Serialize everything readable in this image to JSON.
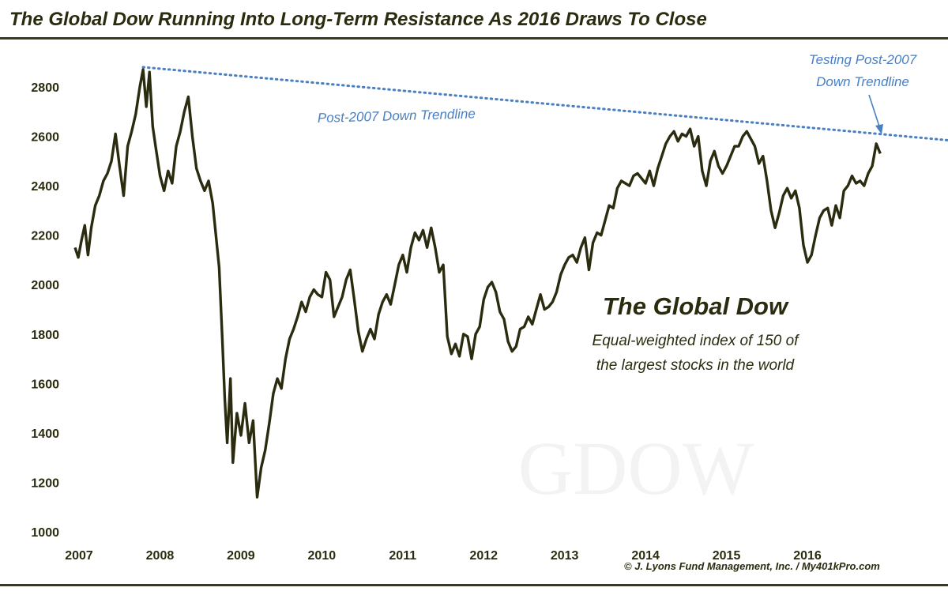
{
  "header": {
    "title": "The Global Dow Running Into Long-Term Resistance As 2016 Draws To Close"
  },
  "footer": {
    "credit": "© J. Lyons Fund Management, Inc. / My401kPro.com"
  },
  "colors": {
    "line": "#2b2b0f",
    "trendline": "#4a7fc1",
    "annotation": "#4a7fc1",
    "text": "#2b2b0f",
    "watermark": "#f3f3f3"
  },
  "chart_data": {
    "type": "line",
    "title": "The Global Dow",
    "subtitle_lines": [
      "Equal-weighted index of 150 of",
      "the largest stocks in the world"
    ],
    "watermark": "GDOW",
    "xlabel": "",
    "ylabel": "",
    "xlim": [
      2007.0,
      2018.15
    ],
    "ylim": [
      1000,
      2900
    ],
    "x_ticks": [
      2007,
      2008,
      2009,
      2010,
      2011,
      2012,
      2013,
      2014,
      2015,
      2016
    ],
    "y_ticks": [
      1000,
      1200,
      1400,
      1600,
      1800,
      2000,
      2200,
      2400,
      2600,
      2800
    ],
    "grid": false,
    "series": [
      {
        "values_xy": [
          [
            2007.0,
            2150
          ],
          [
            2007.04,
            2110
          ],
          [
            2007.08,
            2180
          ],
          [
            2007.12,
            2240
          ],
          [
            2007.16,
            2120
          ],
          [
            2007.2,
            2230
          ],
          [
            2007.25,
            2320
          ],
          [
            2007.3,
            2360
          ],
          [
            2007.35,
            2420
          ],
          [
            2007.4,
            2450
          ],
          [
            2007.45,
            2500
          ],
          [
            2007.5,
            2610
          ],
          [
            2007.55,
            2480
          ],
          [
            2007.6,
            2360
          ],
          [
            2007.65,
            2560
          ],
          [
            2007.7,
            2620
          ],
          [
            2007.75,
            2690
          ],
          [
            2007.8,
            2800
          ],
          [
            2007.84,
            2870
          ],
          [
            2007.88,
            2720
          ],
          [
            2007.92,
            2860
          ],
          [
            2007.96,
            2640
          ],
          [
            2008.0,
            2550
          ],
          [
            2008.05,
            2440
          ],
          [
            2008.1,
            2380
          ],
          [
            2008.15,
            2460
          ],
          [
            2008.2,
            2410
          ],
          [
            2008.25,
            2560
          ],
          [
            2008.3,
            2620
          ],
          [
            2008.35,
            2700
          ],
          [
            2008.4,
            2760
          ],
          [
            2008.45,
            2600
          ],
          [
            2008.5,
            2470
          ],
          [
            2008.55,
            2420
          ],
          [
            2008.6,
            2380
          ],
          [
            2008.65,
            2420
          ],
          [
            2008.7,
            2330
          ],
          [
            2008.74,
            2200
          ],
          [
            2008.78,
            2070
          ],
          [
            2008.82,
            1780
          ],
          [
            2008.85,
            1540
          ],
          [
            2008.88,
            1360
          ],
          [
            2008.92,
            1620
          ],
          [
            2008.95,
            1280
          ],
          [
            2009.0,
            1480
          ],
          [
            2009.05,
            1390
          ],
          [
            2009.1,
            1520
          ],
          [
            2009.15,
            1360
          ],
          [
            2009.2,
            1450
          ],
          [
            2009.25,
            1140
          ],
          [
            2009.3,
            1260
          ],
          [
            2009.35,
            1330
          ],
          [
            2009.4,
            1440
          ],
          [
            2009.45,
            1560
          ],
          [
            2009.5,
            1620
          ],
          [
            2009.55,
            1580
          ],
          [
            2009.6,
            1700
          ],
          [
            2009.65,
            1780
          ],
          [
            2009.7,
            1820
          ],
          [
            2009.75,
            1870
          ],
          [
            2009.8,
            1930
          ],
          [
            2009.85,
            1890
          ],
          [
            2009.9,
            1950
          ],
          [
            2009.95,
            1980
          ],
          [
            2010.0,
            1960
          ],
          [
            2010.05,
            1950
          ],
          [
            2010.1,
            2050
          ],
          [
            2010.15,
            2020
          ],
          [
            2010.2,
            1870
          ],
          [
            2010.25,
            1910
          ],
          [
            2010.3,
            1950
          ],
          [
            2010.35,
            2020
          ],
          [
            2010.4,
            2060
          ],
          [
            2010.45,
            1940
          ],
          [
            2010.5,
            1810
          ],
          [
            2010.55,
            1730
          ],
          [
            2010.6,
            1780
          ],
          [
            2010.65,
            1820
          ],
          [
            2010.7,
            1780
          ],
          [
            2010.75,
            1880
          ],
          [
            2010.8,
            1930
          ],
          [
            2010.85,
            1960
          ],
          [
            2010.9,
            1920
          ],
          [
            2010.95,
            2000
          ],
          [
            2011.0,
            2080
          ],
          [
            2011.05,
            2120
          ],
          [
            2011.1,
            2050
          ],
          [
            2011.15,
            2150
          ],
          [
            2011.2,
            2210
          ],
          [
            2011.25,
            2180
          ],
          [
            2011.3,
            2220
          ],
          [
            2011.35,
            2150
          ],
          [
            2011.4,
            2230
          ],
          [
            2011.45,
            2150
          ],
          [
            2011.5,
            2050
          ],
          [
            2011.55,
            2080
          ],
          [
            2011.6,
            1790
          ],
          [
            2011.65,
            1720
          ],
          [
            2011.7,
            1760
          ],
          [
            2011.75,
            1710
          ],
          [
            2011.8,
            1800
          ],
          [
            2011.85,
            1790
          ],
          [
            2011.9,
            1700
          ],
          [
            2011.95,
            1800
          ],
          [
            2012.0,
            1830
          ],
          [
            2012.05,
            1940
          ],
          [
            2012.1,
            1990
          ],
          [
            2012.15,
            2010
          ],
          [
            2012.2,
            1970
          ],
          [
            2012.25,
            1890
          ],
          [
            2012.3,
            1860
          ],
          [
            2012.35,
            1770
          ],
          [
            2012.4,
            1730
          ],
          [
            2012.45,
            1750
          ],
          [
            2012.5,
            1820
          ],
          [
            2012.55,
            1830
          ],
          [
            2012.6,
            1870
          ],
          [
            2012.65,
            1840
          ],
          [
            2012.7,
            1900
          ],
          [
            2012.75,
            1960
          ],
          [
            2012.8,
            1900
          ],
          [
            2012.85,
            1910
          ],
          [
            2012.9,
            1930
          ],
          [
            2012.95,
            1970
          ],
          [
            2013.0,
            2040
          ],
          [
            2013.05,
            2080
          ],
          [
            2013.1,
            2110
          ],
          [
            2013.15,
            2120
          ],
          [
            2013.2,
            2090
          ],
          [
            2013.25,
            2150
          ],
          [
            2013.3,
            2190
          ],
          [
            2013.35,
            2060
          ],
          [
            2013.4,
            2170
          ],
          [
            2013.45,
            2210
          ],
          [
            2013.5,
            2200
          ],
          [
            2013.55,
            2260
          ],
          [
            2013.6,
            2320
          ],
          [
            2013.65,
            2310
          ],
          [
            2013.7,
            2390
          ],
          [
            2013.75,
            2420
          ],
          [
            2013.8,
            2410
          ],
          [
            2013.85,
            2400
          ],
          [
            2013.9,
            2440
          ],
          [
            2013.95,
            2450
          ],
          [
            2014.0,
            2430
          ],
          [
            2014.05,
            2410
          ],
          [
            2014.1,
            2460
          ],
          [
            2014.15,
            2400
          ],
          [
            2014.2,
            2470
          ],
          [
            2014.25,
            2520
          ],
          [
            2014.3,
            2570
          ],
          [
            2014.35,
            2600
          ],
          [
            2014.4,
            2620
          ],
          [
            2014.45,
            2580
          ],
          [
            2014.5,
            2610
          ],
          [
            2014.55,
            2600
          ],
          [
            2014.6,
            2630
          ],
          [
            2014.65,
            2560
          ],
          [
            2014.7,
            2600
          ],
          [
            2014.75,
            2460
          ],
          [
            2014.8,
            2400
          ],
          [
            2014.85,
            2500
          ],
          [
            2014.9,
            2540
          ],
          [
            2014.95,
            2480
          ],
          [
            2015.0,
            2450
          ],
          [
            2015.05,
            2480
          ],
          [
            2015.1,
            2520
          ],
          [
            2015.15,
            2560
          ],
          [
            2015.2,
            2560
          ],
          [
            2015.25,
            2600
          ],
          [
            2015.3,
            2620
          ],
          [
            2015.35,
            2590
          ],
          [
            2015.4,
            2560
          ],
          [
            2015.45,
            2490
          ],
          [
            2015.5,
            2520
          ],
          [
            2015.55,
            2420
          ],
          [
            2015.6,
            2300
          ],
          [
            2015.65,
            2230
          ],
          [
            2015.7,
            2290
          ],
          [
            2015.75,
            2360
          ],
          [
            2015.8,
            2390
          ],
          [
            2015.85,
            2350
          ],
          [
            2015.9,
            2380
          ],
          [
            2015.95,
            2310
          ],
          [
            2016.0,
            2160
          ],
          [
            2016.05,
            2090
          ],
          [
            2016.1,
            2120
          ],
          [
            2016.15,
            2200
          ],
          [
            2016.2,
            2270
          ],
          [
            2016.25,
            2300
          ],
          [
            2016.3,
            2310
          ],
          [
            2016.35,
            2240
          ],
          [
            2016.4,
            2320
          ],
          [
            2016.45,
            2270
          ],
          [
            2016.5,
            2380
          ],
          [
            2016.55,
            2400
          ],
          [
            2016.6,
            2440
          ],
          [
            2016.65,
            2410
          ],
          [
            2016.7,
            2420
          ],
          [
            2016.75,
            2400
          ],
          [
            2016.8,
            2450
          ],
          [
            2016.85,
            2480
          ],
          [
            2016.9,
            2570
          ],
          [
            2016.95,
            2530
          ]
        ]
      }
    ],
    "trendline": {
      "label": "Post-2007 Down Trendline",
      "start": [
        2007.84,
        2880
      ],
      "end": [
        2018.1,
        2575
      ]
    },
    "annotation": {
      "lines": [
        "Testing Post-2007",
        "Down Trendline"
      ],
      "points_to": [
        2016.93,
        2578
      ]
    }
  }
}
